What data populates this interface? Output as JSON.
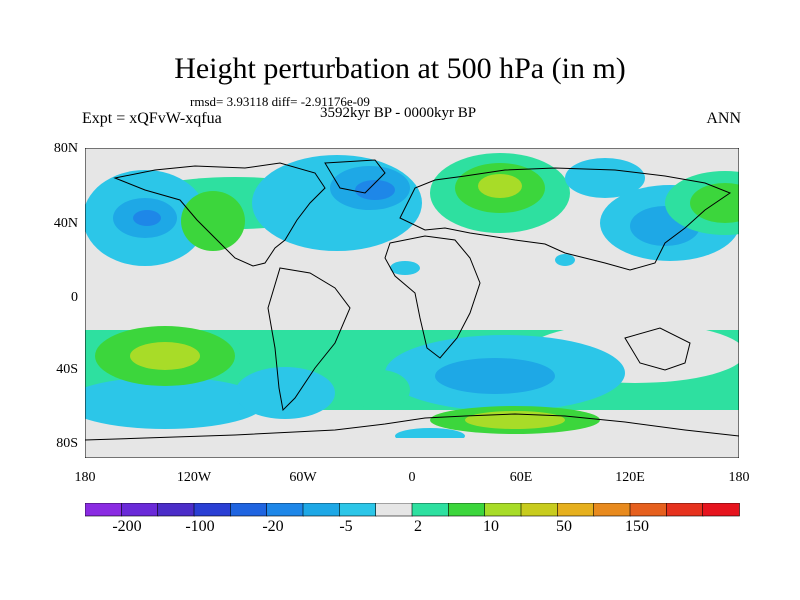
{
  "title": "Height perturbation at 500 hPa (in m)",
  "stats": "rmsd= 3.93118 diff= -2.91176e-09",
  "experiment": "Expt = xQFvW-xqfua",
  "period": "3592kyr BP - 0000kyr BP",
  "season": "ANN",
  "lat_ticks": [
    "80N",
    "40N",
    "0",
    "40S",
    "80S"
  ],
  "lon_ticks": [
    "180",
    "120W",
    "60W",
    "0",
    "60E",
    "120E",
    "180"
  ],
  "colorbar": {
    "colors": [
      "#8a2be2",
      "#6a2ad8",
      "#4b2dc8",
      "#2a3fd4",
      "#1f64e0",
      "#1e87e8",
      "#1ea8e6",
      "#2cc6e8",
      "#e6e6e6",
      "#2ee0a0",
      "#3cd63c",
      "#a8dc28",
      "#c8cc1e",
      "#e6b01e",
      "#e88a1e",
      "#e6601e",
      "#e6321e",
      "#e6141e"
    ],
    "labels": [
      "-200",
      "-100",
      "-20",
      "-5",
      "2",
      "10",
      "50",
      "150"
    ]
  },
  "chart_data": {
    "type": "heatmap",
    "title": "Height perturbation at 500 hPa (in m)",
    "variable": "500 hPa geopotential height perturbation",
    "units": "m",
    "x_range": [
      -180,
      180
    ],
    "y_range": [
      -90,
      90
    ],
    "contour_levels": [
      -200,
      -100,
      -20,
      -5,
      2,
      10,
      50,
      150
    ],
    "features": [
      {
        "region": "North Pacific",
        "sign": "negative",
        "approx_value": -10
      },
      {
        "region": "East Asia / NW Pacific",
        "sign": "negative",
        "approx_value": -10
      },
      {
        "region": "North Atlantic",
        "sign": "negative",
        "approx_value": -10
      },
      {
        "region": "NE Europe / Western Russia",
        "sign": "positive",
        "approx_value": 20
      },
      {
        "region": "NW North America",
        "sign": "positive",
        "approx_value": 8
      },
      {
        "region": "South Pacific",
        "sign": "positive",
        "approx_value": 20
      },
      {
        "region": "Southern Indian Ocean",
        "sign": "negative",
        "approx_value": -10
      },
      {
        "region": "Antarctic coast (Indian sector)",
        "sign": "positive",
        "approx_value": 20
      }
    ]
  }
}
